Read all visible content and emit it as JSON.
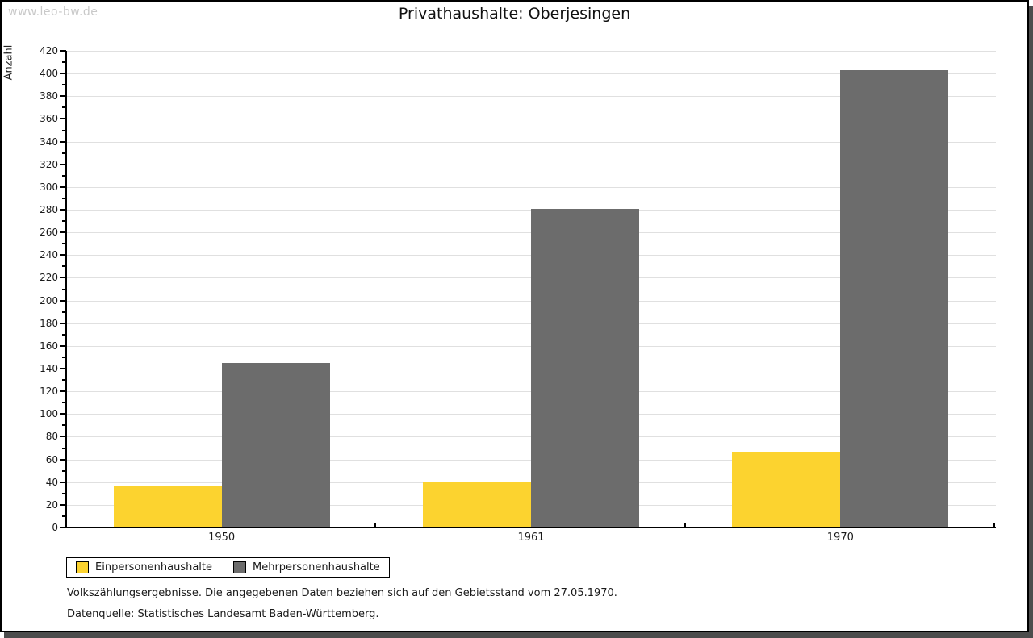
{
  "watermark": "www.leo-bw.de",
  "title": "Privathaushalte: Oberjesingen",
  "chart_data": {
    "type": "bar",
    "title": "Privathaushalte: Oberjesingen",
    "xlabel": "",
    "ylabel": "Anzahl",
    "categories": [
      "1950",
      "1961",
      "1970"
    ],
    "series": [
      {
        "name": "Einpersonenhaushalte",
        "color": "#fcd32f",
        "values": [
          37,
          40,
          66
        ]
      },
      {
        "name": "Mehrpersonenhaushalte",
        "color": "#6c6c6c",
        "values": [
          145,
          281,
          403
        ]
      }
    ],
    "ylim": [
      0,
      420
    ],
    "ytick_step": 20,
    "ytick_minor_step": 10,
    "grid": true,
    "gridline_color": "#e0e0e0",
    "legend_position": "bottom-left"
  },
  "footnotes": [
    "Volkszählungsergebnisse. Die angegebenen Daten beziehen sich auf den Gebietsstand vom 27.05.1970.",
    "Datenquelle: Statistisches Landesamt Baden-Württemberg."
  ]
}
